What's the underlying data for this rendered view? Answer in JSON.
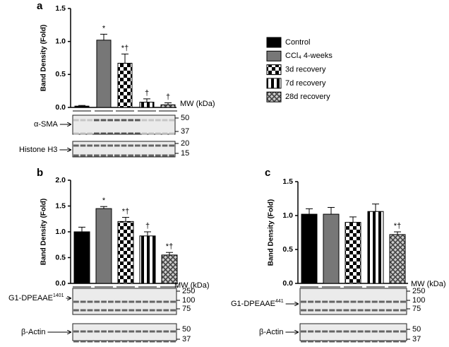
{
  "legend": {
    "items": [
      {
        "name": "Control",
        "pattern": "solid",
        "color": "#000000"
      },
      {
        "name": "CCl₄ 4-weeks",
        "pattern": "solid",
        "color": "#777777"
      },
      {
        "name": "3d recovery",
        "pattern": "checker",
        "color": "#000000"
      },
      {
        "name": "7d recovery",
        "pattern": "stripes",
        "color": "#000000"
      },
      {
        "name": "28d recovery",
        "pattern": "crosshatch",
        "color": "#555555"
      }
    ]
  },
  "chart_data": [
    {
      "type": "bar",
      "panel": "a",
      "y_label": "Band Density (Fold)",
      "ylim": [
        0,
        1.5
      ],
      "yticks": [
        {
          "value": 0,
          "label": "0.0"
        },
        0.5,
        {
          "value": 1,
          "label": "1.0"
        },
        1.5
      ],
      "values": [
        0.02,
        1.02,
        0.67,
        0.08,
        0.04
      ],
      "errors": [
        0.01,
        0.09,
        0.14,
        0.05,
        0.03
      ],
      "annotations": [
        null,
        "*",
        "*†",
        "†",
        "†"
      ],
      "mw_label": "MW (kDa)",
      "blots": [
        {
          "label": "α-SMA",
          "mw": [
            50,
            37
          ]
        },
        {
          "label": "Histone H3",
          "mw": [
            20,
            15
          ]
        }
      ]
    },
    {
      "type": "bar",
      "panel": "b",
      "y_label": "Band Density (Fold)",
      "ylim": [
        0,
        2
      ],
      "yticks": [
        {
          "value": 0,
          "label": "0.0"
        },
        0.5,
        {
          "value": 1,
          "label": "1.0"
        },
        1.5,
        {
          "value": 2,
          "label": "2.0"
        }
      ],
      "values": [
        1.0,
        1.45,
        1.2,
        0.92,
        0.55
      ],
      "errors": [
        0.09,
        0.04,
        0.08,
        0.08,
        0.05
      ],
      "annotations": [
        null,
        "*",
        "*†",
        "†",
        "*†"
      ],
      "mw_label": "MW (kDa)",
      "blots": [
        {
          "label": "G1-DPEAAE",
          "label_sup": "1401",
          "mw": [
            250,
            100,
            75
          ]
        },
        {
          "label": "β-Actin",
          "mw": [
            50,
            37
          ]
        }
      ]
    },
    {
      "type": "bar",
      "panel": "c",
      "y_label": "Band Density (Fold)",
      "ylim": [
        0,
        1.5
      ],
      "yticks": [
        {
          "value": 0,
          "label": "0.0"
        },
        0.5,
        {
          "value": 1,
          "label": "1.0"
        },
        1.5
      ],
      "values": [
        1.02,
        1.02,
        0.9,
        1.06,
        0.72
      ],
      "errors": [
        0.08,
        0.1,
        0.08,
        0.11,
        0.04
      ],
      "annotations": [
        null,
        null,
        null,
        null,
        "*†"
      ],
      "mw_label": "MW (kDa)",
      "blots": [
        {
          "label": "G1-DPEAAE",
          "label_sup": "441",
          "mw": [
            250,
            100,
            75
          ]
        },
        {
          "label": "β-Actin",
          "mw": [
            50,
            37
          ]
        }
      ]
    }
  ]
}
